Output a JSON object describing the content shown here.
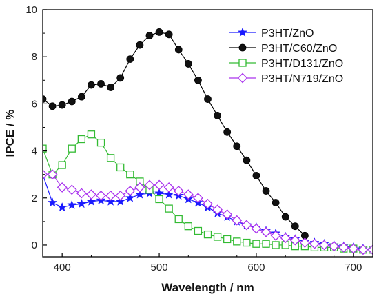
{
  "chart_data": {
    "type": "line",
    "xlabel": "Wavelength / nm",
    "ylabel": "IPCE / %",
    "xlim": [
      380,
      720
    ],
    "ylim": [
      -0.5,
      10
    ],
    "xticks": [
      400,
      500,
      600,
      700
    ],
    "yticks": [
      0,
      2,
      4,
      6,
      8,
      10
    ],
    "legend_position": "top-right",
    "series": [
      {
        "name": "P3HT/ZnO",
        "color": "#1a1aff",
        "marker": "star",
        "x": [
          380,
          390,
          400,
          410,
          420,
          430,
          440,
          450,
          460,
          470,
          480,
          490,
          500,
          510,
          520,
          530,
          540,
          550,
          560,
          570,
          580,
          590,
          600,
          610,
          620,
          630,
          640,
          650,
          660,
          670,
          680,
          690,
          700,
          710,
          720
        ],
        "y": [
          3.0,
          1.8,
          1.6,
          1.7,
          1.75,
          1.85,
          1.9,
          1.85,
          1.85,
          2.0,
          2.15,
          2.2,
          2.2,
          2.15,
          2.1,
          1.95,
          1.8,
          1.6,
          1.35,
          1.2,
          1.0,
          0.85,
          0.75,
          0.6,
          0.5,
          0.35,
          0.25,
          0.15,
          0.1,
          0.05,
          0.0,
          -0.05,
          -0.1,
          -0.15,
          -0.2
        ]
      },
      {
        "name": "P3HT/C60/ZnO",
        "color": "#000000",
        "marker": "circle",
        "x": [
          380,
          390,
          400,
          410,
          420,
          430,
          440,
          450,
          460,
          470,
          480,
          490,
          500,
          510,
          520,
          530,
          540,
          550,
          560,
          570,
          580,
          590,
          600,
          610,
          620,
          630,
          640,
          650
        ],
        "y": [
          6.2,
          5.9,
          5.95,
          6.1,
          6.3,
          6.8,
          6.85,
          6.7,
          7.1,
          7.9,
          8.5,
          8.9,
          9.05,
          8.95,
          8.3,
          7.7,
          7.0,
          6.2,
          5.5,
          4.8,
          4.2,
          3.6,
          2.95,
          2.3,
          1.8,
          1.2,
          0.8,
          0.4
        ]
      },
      {
        "name": "P3HT/D131/ZnO",
        "color": "#33bb33",
        "marker": "square",
        "x": [
          380,
          390,
          400,
          410,
          420,
          430,
          440,
          450,
          460,
          470,
          480,
          490,
          500,
          510,
          520,
          530,
          540,
          550,
          560,
          570,
          580,
          590,
          600,
          610,
          620,
          630,
          640,
          650,
          660,
          670,
          680,
          690,
          700,
          710,
          720
        ],
        "y": [
          4.1,
          3.0,
          3.4,
          4.1,
          4.5,
          4.7,
          4.35,
          3.7,
          3.3,
          3.0,
          2.7,
          2.35,
          1.95,
          1.55,
          1.1,
          0.8,
          0.6,
          0.45,
          0.35,
          0.25,
          0.15,
          0.1,
          0.05,
          0.05,
          0.0,
          0.0,
          -0.05,
          -0.05,
          -0.1,
          -0.1,
          -0.1,
          -0.15,
          -0.15,
          -0.2,
          -0.2
        ]
      },
      {
        "name": "P3HT/N719/ZnO",
        "color": "#aa33ee",
        "marker": "diamond",
        "x": [
          380,
          390,
          400,
          410,
          420,
          430,
          440,
          450,
          460,
          470,
          480,
          490,
          500,
          510,
          520,
          530,
          540,
          550,
          560,
          570,
          580,
          590,
          600,
          610,
          620,
          630,
          640,
          650,
          660,
          670,
          680,
          690,
          700,
          710,
          720
        ],
        "y": [
          3.0,
          3.0,
          2.45,
          2.35,
          2.2,
          2.15,
          2.1,
          2.1,
          2.1,
          2.3,
          2.45,
          2.55,
          2.55,
          2.45,
          2.3,
          2.15,
          2.0,
          1.75,
          1.5,
          1.3,
          1.05,
          0.85,
          0.7,
          0.55,
          0.4,
          0.3,
          0.2,
          0.1,
          0.05,
          0.0,
          -0.05,
          -0.1,
          -0.15,
          -0.2,
          -0.2
        ]
      }
    ]
  }
}
